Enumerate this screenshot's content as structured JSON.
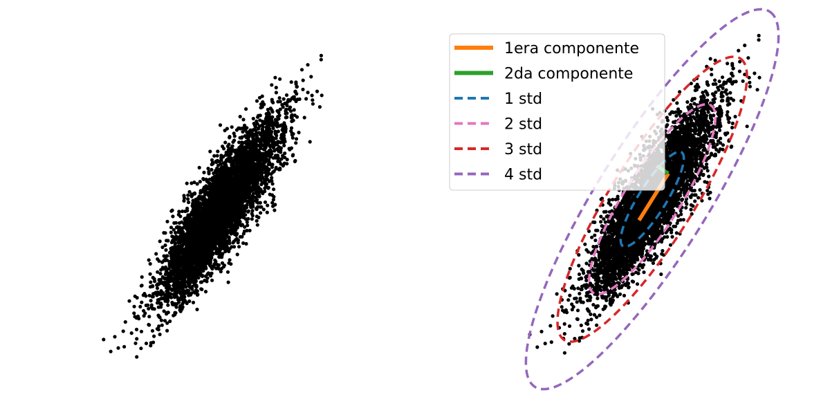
{
  "chart_data": [
    {
      "type": "scatter",
      "panel": "left",
      "axes": "off",
      "point_color": "#000000",
      "distribution": {
        "kind": "bivariate-normal",
        "n_points": 5000,
        "mean": [
          0,
          0
        ],
        "sigma_major": 1.0,
        "sigma_minor": 0.25,
        "major_axis_angle_deg": 58
      },
      "title": "",
      "xlabel": "",
      "ylabel": ""
    },
    {
      "type": "scatter",
      "panel": "right",
      "axes": "off",
      "point_color": "#000000",
      "distribution": {
        "kind": "bivariate-normal",
        "n_points": 5000,
        "mean": [
          0,
          0
        ],
        "sigma_major": 1.0,
        "sigma_minor": 0.25,
        "major_axis_angle_deg": 58
      },
      "components": [
        {
          "name": "1era componente",
          "color": "#ff7f0e",
          "length_std": 1.0,
          "direction": "major"
        },
        {
          "name": "2da componente",
          "color": "#2ca02c",
          "length_std": 1.0,
          "direction": "minor"
        }
      ],
      "ellipses": [
        {
          "name": "1 std",
          "k": 1,
          "color": "#1f77b4"
        },
        {
          "name": "2 std",
          "k": 2,
          "color": "#e377c2"
        },
        {
          "name": "3 std",
          "k": 3,
          "color": "#d62728"
        },
        {
          "name": "4 std",
          "k": 4,
          "color": "#9467bd"
        }
      ],
      "legend": {
        "placement": "upper-right",
        "entries": [
          {
            "label": "1era componente",
            "style": "solid",
            "color": "#ff7f0e"
          },
          {
            "label": "2da componente",
            "style": "solid",
            "color": "#2ca02c"
          },
          {
            "label": "1 std",
            "style": "dashed",
            "color": "#1f77b4"
          },
          {
            "label": "2 std",
            "style": "dashed",
            "color": "#e377c2"
          },
          {
            "label": "3 std",
            "style": "dashed",
            "color": "#d62728"
          },
          {
            "label": "4 std",
            "style": "dashed",
            "color": "#9467bd"
          }
        ]
      },
      "title": "",
      "xlabel": "",
      "ylabel": ""
    }
  ]
}
